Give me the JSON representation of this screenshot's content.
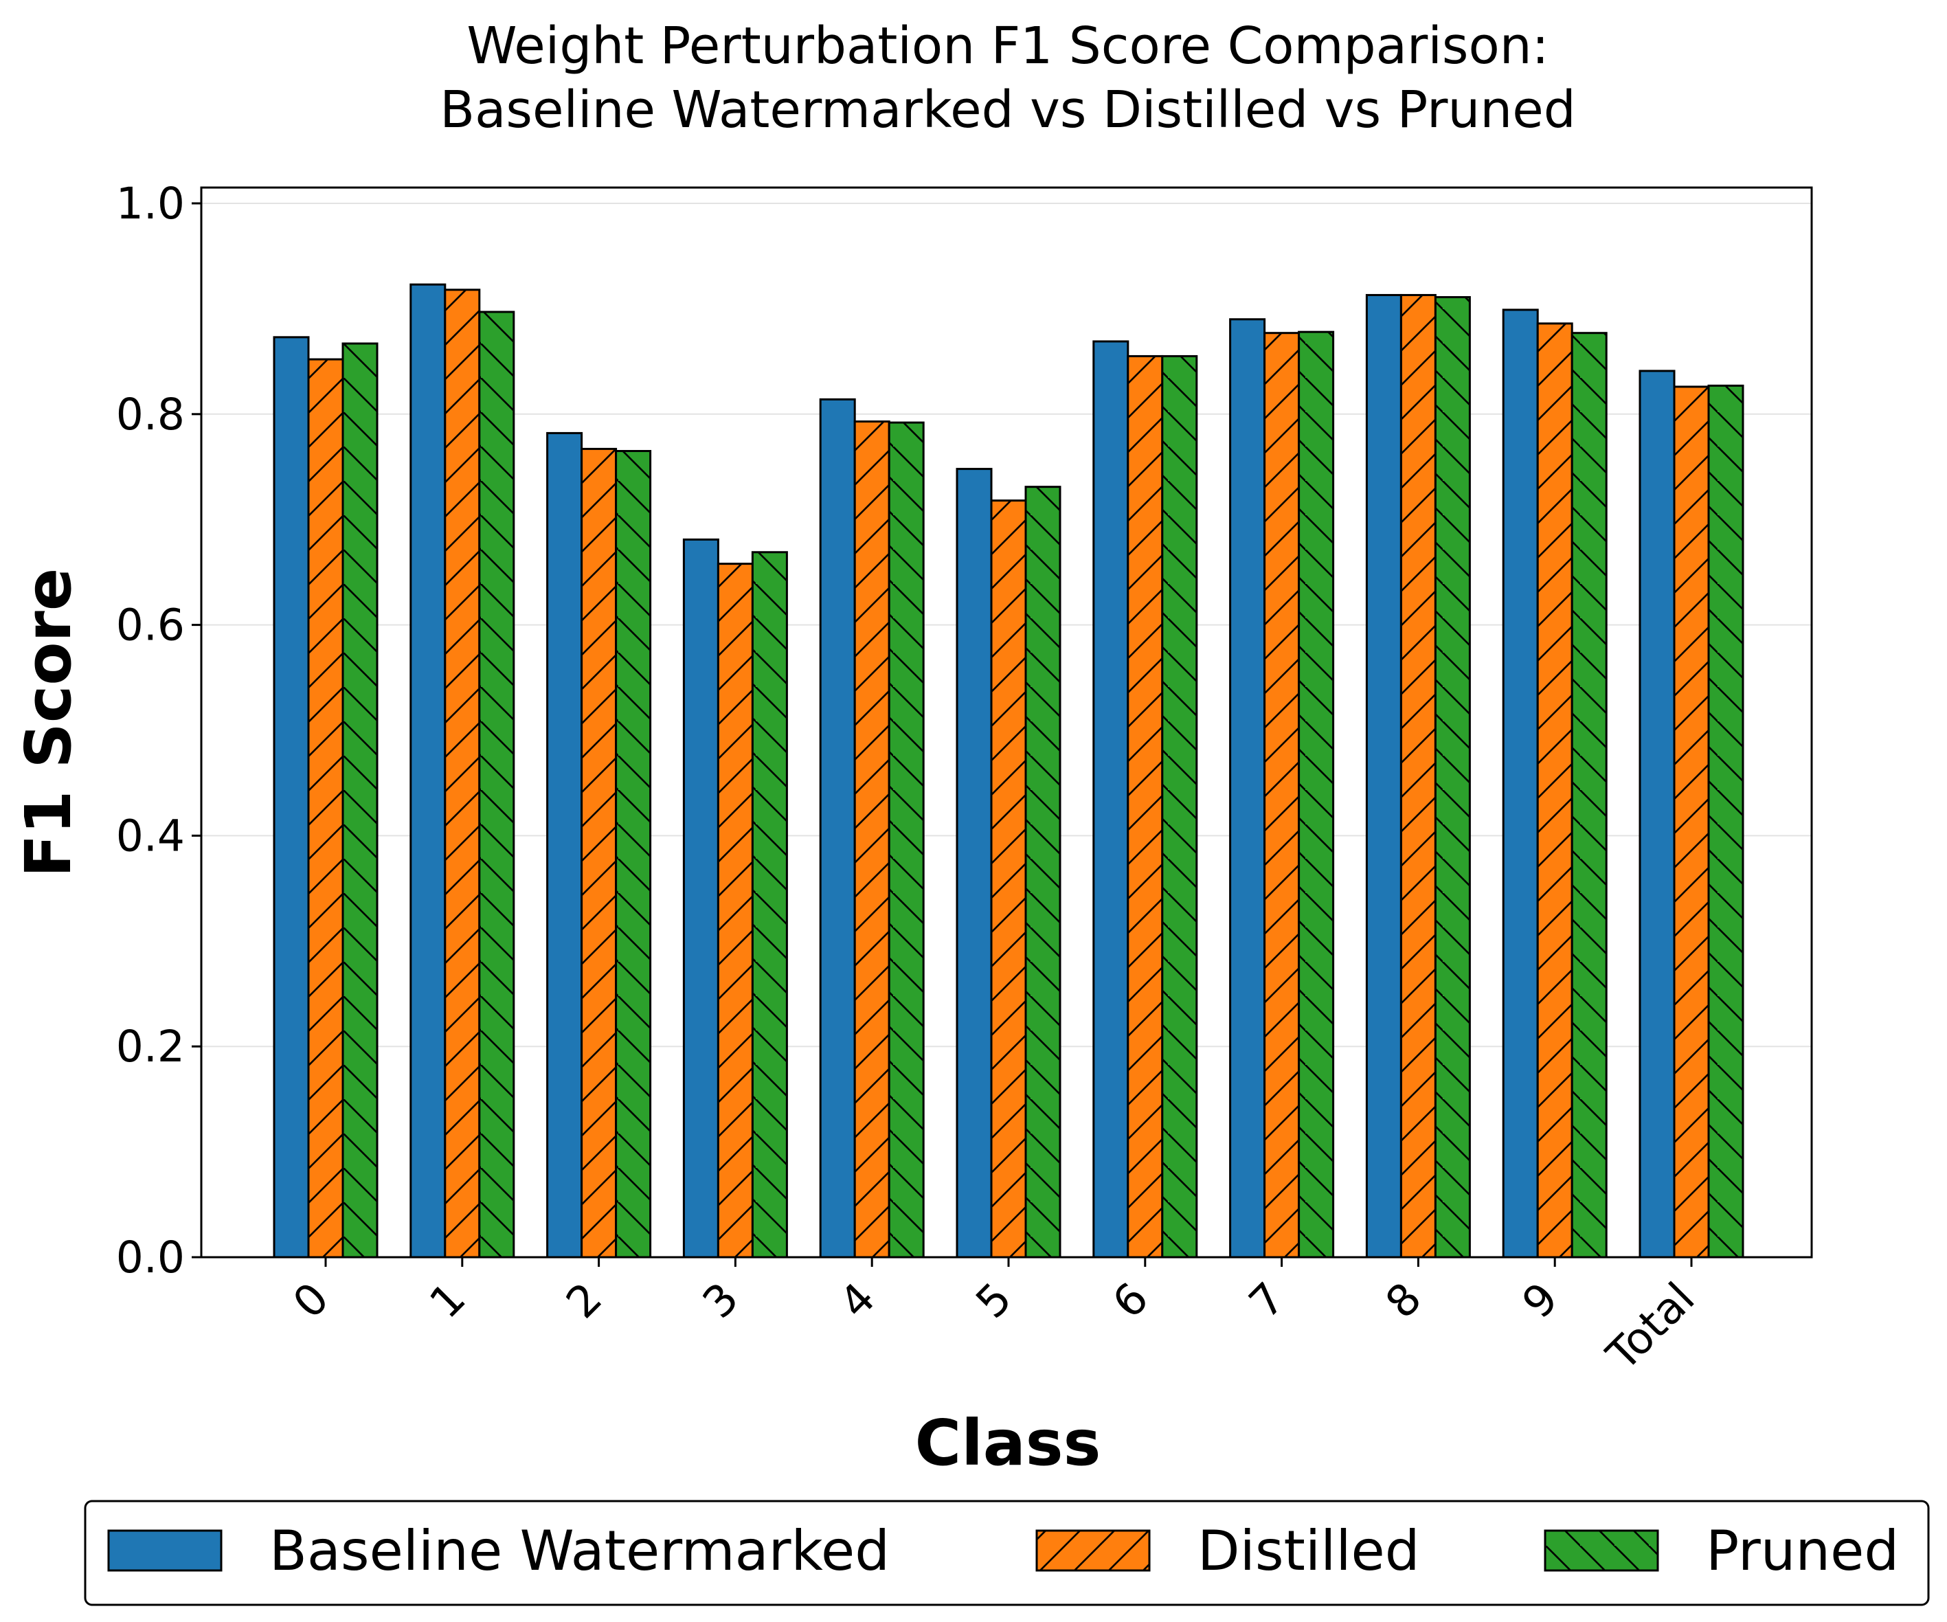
{
  "chart_data": {
    "type": "bar",
    "title": [
      "Weight Perturbation F1 Score Comparison:",
      "Baseline Watermarked vs Distilled vs Pruned"
    ],
    "xlabel": "Class",
    "ylabel": "F1 Score",
    "categories": [
      "0",
      "1",
      "2",
      "3",
      "4",
      "5",
      "6",
      "7",
      "8",
      "9",
      "Total"
    ],
    "ylim": [
      0,
      1.015
    ],
    "yticks": [
      "0.0",
      "0.2",
      "0.4",
      "0.6",
      "0.8",
      "1.0"
    ],
    "ytick_values": [
      0,
      0.2,
      0.4,
      0.6,
      0.8,
      1.0
    ],
    "grid": true,
    "legend_position": "bottom",
    "series": [
      {
        "name": "Baseline Watermarked",
        "color": "#1f77b4",
        "hatch": "none",
        "values": [
          0.873,
          0.923,
          0.782,
          0.681,
          0.814,
          0.748,
          0.869,
          0.89,
          0.913,
          0.899,
          0.841
        ]
      },
      {
        "name": "Distilled",
        "color": "#ff7f0e",
        "hatch": "forward-diagonal",
        "values": [
          0.852,
          0.918,
          0.767,
          0.658,
          0.793,
          0.718,
          0.855,
          0.877,
          0.913,
          0.886,
          0.826
        ]
      },
      {
        "name": "Pruned",
        "color": "#2ca02c",
        "hatch": "back-diagonal",
        "values": [
          0.867,
          0.897,
          0.765,
          0.669,
          0.792,
          0.731,
          0.855,
          0.878,
          0.911,
          0.877,
          0.827
        ]
      }
    ]
  }
}
